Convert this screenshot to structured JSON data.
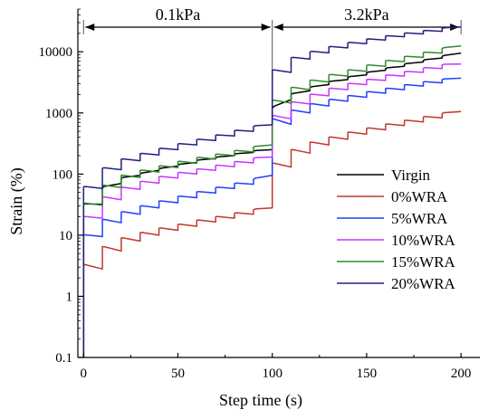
{
  "chart_data": {
    "type": "line",
    "xlabel": "Step time (s)",
    "ylabel": "Strain (%)",
    "y_scale": "log",
    "xlim": [
      -3,
      210
    ],
    "ylim": [
      0.1,
      50000
    ],
    "x_ticks": [
      0,
      50,
      100,
      150,
      200
    ],
    "x_tick_labels": [
      "0",
      "50",
      "100",
      "150",
      "200"
    ],
    "y_ticks": [
      0.1,
      1,
      10,
      100,
      1000,
      10000
    ],
    "y_tick_labels": [
      "0.1",
      "1",
      "10",
      "100",
      "1000",
      "10000"
    ],
    "grid": false,
    "legend_position": "right",
    "annotations": [
      {
        "label": "0.1kPa",
        "x_start": 0,
        "x_end": 100
      },
      {
        "label": "3.2kPa",
        "x_start": 100,
        "x_end": 200
      }
    ],
    "cycle_period_s": 10,
    "series": [
      {
        "name": "Virgin",
        "color": "#000000",
        "steps": [
          [
            0,
            32,
            32
          ],
          [
            10,
            60,
            70
          ],
          [
            20,
            85,
            95
          ],
          [
            30,
            100,
            115
          ],
          [
            40,
            120,
            135
          ],
          [
            50,
            140,
            155
          ],
          [
            60,
            165,
            180
          ],
          [
            70,
            185,
            200
          ],
          [
            80,
            210,
            225
          ],
          [
            90,
            235,
            250
          ],
          [
            100,
            1200,
            1650
          ],
          [
            110,
            2000,
            2300
          ],
          [
            120,
            2600,
            2900
          ],
          [
            130,
            3200,
            3500
          ],
          [
            140,
            3800,
            4200
          ],
          [
            150,
            4500,
            5000
          ],
          [
            160,
            5300,
            5800
          ],
          [
            170,
            6200,
            6800
          ],
          [
            180,
            7200,
            7900
          ],
          [
            190,
            8400,
            9500
          ]
        ]
      },
      {
        "name": "0%WRA",
        "color": "#c0392b",
        "steps": [
          [
            0,
            3.3,
            2.8
          ],
          [
            10,
            6.5,
            5.5
          ],
          [
            20,
            9.0,
            8.0
          ],
          [
            30,
            11.0,
            10.0
          ],
          [
            40,
            13.0,
            12.0
          ],
          [
            50,
            15.0,
            14.0
          ],
          [
            60,
            17.5,
            16.5
          ],
          [
            70,
            20.0,
            19.0
          ],
          [
            80,
            23.0,
            22.0
          ],
          [
            90,
            26.0,
            28.0
          ],
          [
            100,
            150,
            130
          ],
          [
            110,
            250,
            220
          ],
          [
            120,
            330,
            300
          ],
          [
            130,
            400,
            370
          ],
          [
            140,
            480,
            450
          ],
          [
            150,
            560,
            530
          ],
          [
            160,
            650,
            620
          ],
          [
            170,
            750,
            710
          ],
          [
            180,
            860,
            830
          ],
          [
            190,
            980,
            1050
          ]
        ]
      },
      {
        "name": "5%WRA",
        "color": "#1f3fff",
        "steps": [
          [
            0,
            10,
            9.5
          ],
          [
            10,
            18,
            16
          ],
          [
            20,
            24,
            22
          ],
          [
            30,
            30,
            28
          ],
          [
            40,
            36,
            34
          ],
          [
            50,
            43,
            41
          ],
          [
            60,
            51,
            49
          ],
          [
            70,
            60,
            58
          ],
          [
            80,
            70,
            68
          ],
          [
            90,
            82,
            95
          ],
          [
            100,
            800,
            650
          ],
          [
            110,
            1100,
            1000
          ],
          [
            120,
            1400,
            1300
          ],
          [
            130,
            1650,
            1550
          ],
          [
            140,
            1900,
            1800
          ],
          [
            150,
            2200,
            2100
          ],
          [
            160,
            2500,
            2400
          ],
          [
            170,
            2850,
            2750
          ],
          [
            180,
            3200,
            3100
          ],
          [
            190,
            3500,
            3700
          ]
        ]
      },
      {
        "name": "10%WRA",
        "color": "#cc33ff",
        "steps": [
          [
            0,
            20,
            19
          ],
          [
            10,
            42,
            38
          ],
          [
            20,
            60,
            56
          ],
          [
            30,
            75,
            71
          ],
          [
            40,
            90,
            86
          ],
          [
            50,
            105,
            100
          ],
          [
            60,
            120,
            115
          ],
          [
            70,
            138,
            132
          ],
          [
            80,
            158,
            152
          ],
          [
            90,
            180,
            190
          ],
          [
            100,
            900,
            800
          ],
          [
            110,
            1500,
            1400
          ],
          [
            120,
            2000,
            1900
          ],
          [
            130,
            2500,
            2400
          ],
          [
            140,
            3000,
            2900
          ],
          [
            150,
            3500,
            3400
          ],
          [
            160,
            4100,
            4000
          ],
          [
            170,
            4700,
            4600
          ],
          [
            180,
            5400,
            5300
          ],
          [
            190,
            6100,
            6300
          ]
        ]
      },
      {
        "name": "15%WRA",
        "color": "#2e8b2e",
        "steps": [
          [
            0,
            33,
            31
          ],
          [
            10,
            65,
            60
          ],
          [
            20,
            95,
            88
          ],
          [
            30,
            115,
            108
          ],
          [
            40,
            135,
            128
          ],
          [
            50,
            160,
            150
          ],
          [
            60,
            185,
            175
          ],
          [
            70,
            210,
            200
          ],
          [
            80,
            240,
            230
          ],
          [
            90,
            275,
            300
          ],
          [
            100,
            1600,
            1450
          ],
          [
            110,
            2600,
            2400
          ],
          [
            120,
            3400,
            3200
          ],
          [
            130,
            4200,
            4000
          ],
          [
            140,
            5000,
            4800
          ],
          [
            150,
            6000,
            5800
          ],
          [
            160,
            7100,
            6900
          ],
          [
            170,
            8300,
            8100
          ],
          [
            180,
            9700,
            9500
          ],
          [
            190,
            11300,
            12500
          ]
        ]
      },
      {
        "name": "20%WRA",
        "color": "#202080",
        "steps": [
          [
            0,
            62,
            58
          ],
          [
            10,
            125,
            118
          ],
          [
            20,
            175,
            165
          ],
          [
            30,
            215,
            205
          ],
          [
            40,
            260,
            250
          ],
          [
            50,
            310,
            300
          ],
          [
            60,
            365,
            355
          ],
          [
            70,
            430,
            420
          ],
          [
            80,
            510,
            500
          ],
          [
            90,
            600,
            640
          ],
          [
            100,
            5000,
            4600
          ],
          [
            110,
            8000,
            7600
          ],
          [
            120,
            10000,
            9600
          ],
          [
            130,
            12000,
            11600
          ],
          [
            140,
            14000,
            13600
          ],
          [
            150,
            16000,
            15600
          ],
          [
            160,
            18000,
            17600
          ],
          [
            170,
            20000,
            19600
          ],
          [
            180,
            22000,
            21600
          ],
          [
            190,
            24000,
            25500
          ]
        ]
      }
    ]
  }
}
